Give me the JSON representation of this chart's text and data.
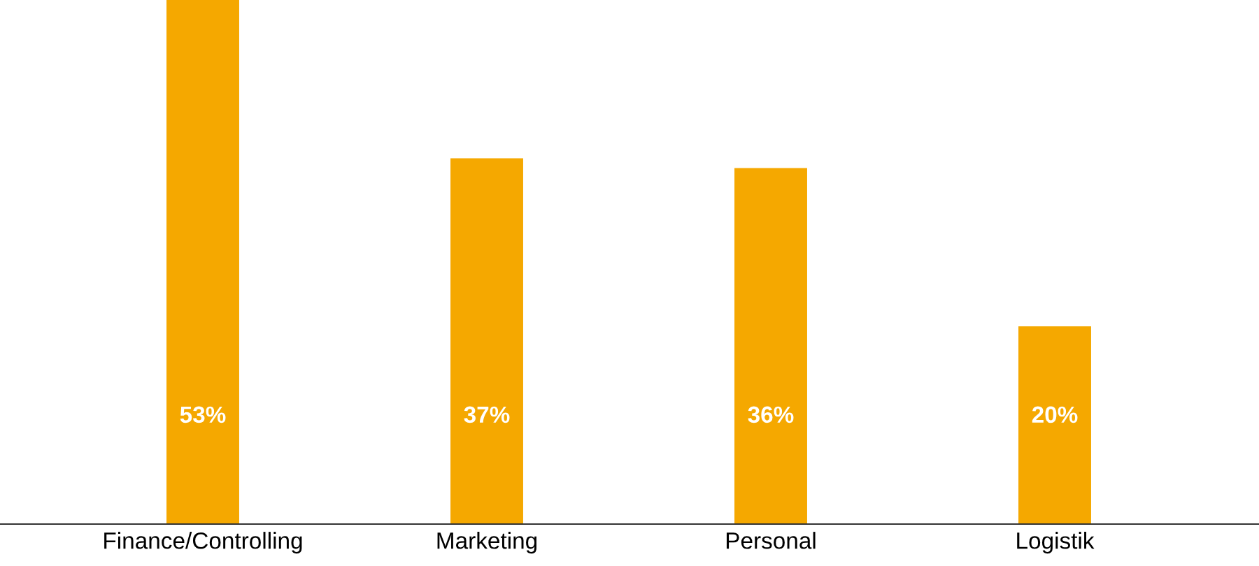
{
  "chart_data": {
    "type": "bar",
    "categories": [
      "Finance/Controlling",
      "Marketing",
      "Personal",
      "Logistik"
    ],
    "values": [
      53,
      37,
      36,
      20
    ],
    "value_labels": [
      "53%",
      "37%",
      "36%",
      "20%"
    ],
    "color": "#f5a800",
    "ylim": [
      0,
      53
    ],
    "tick_labels": "x",
    "grid": false,
    "legend": false
  }
}
